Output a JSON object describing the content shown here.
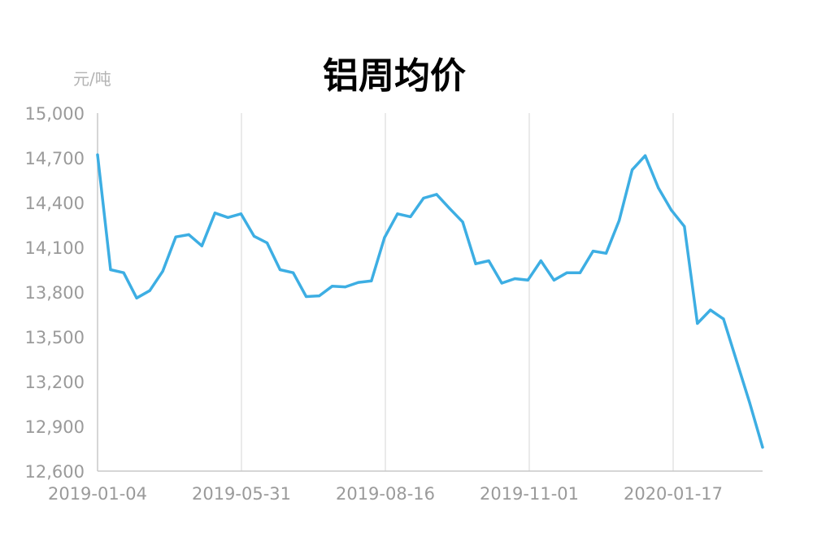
{
  "chart_data": {
    "type": "line",
    "title": "铝周均价",
    "ylabel": "元/吨",
    "xlabel": "",
    "ylim": [
      12600,
      15000
    ],
    "yticks": [
      "15,000",
      "14,700",
      "14,400",
      "14,100",
      "13,800",
      "13,500",
      "13,200",
      "12,900",
      "12,600"
    ],
    "xticks": [
      "2019-01-04",
      "2019-05-31",
      "2019-08-16",
      "2019-11-01",
      "2020-01-17"
    ],
    "grid": "vertical",
    "legend": "none",
    "color": "#3daee3",
    "series": [
      {
        "values": [
          14720,
          13950,
          13930,
          13760,
          13810,
          13940,
          14170,
          14185,
          14110,
          14330,
          14300,
          14325,
          14175,
          14130,
          13950,
          13930,
          13770,
          13775,
          13840,
          13835,
          13865,
          13875,
          14165,
          14325,
          14305,
          14430,
          14455,
          14360,
          14270,
          13990,
          14010,
          13860,
          13890,
          13880,
          14010,
          13880,
          13930,
          13930,
          14075,
          14060,
          14280,
          14620,
          14715,
          14500,
          14350,
          14240,
          13590,
          13680,
          13620,
          13340,
          13060,
          12760
        ]
      }
    ]
  }
}
